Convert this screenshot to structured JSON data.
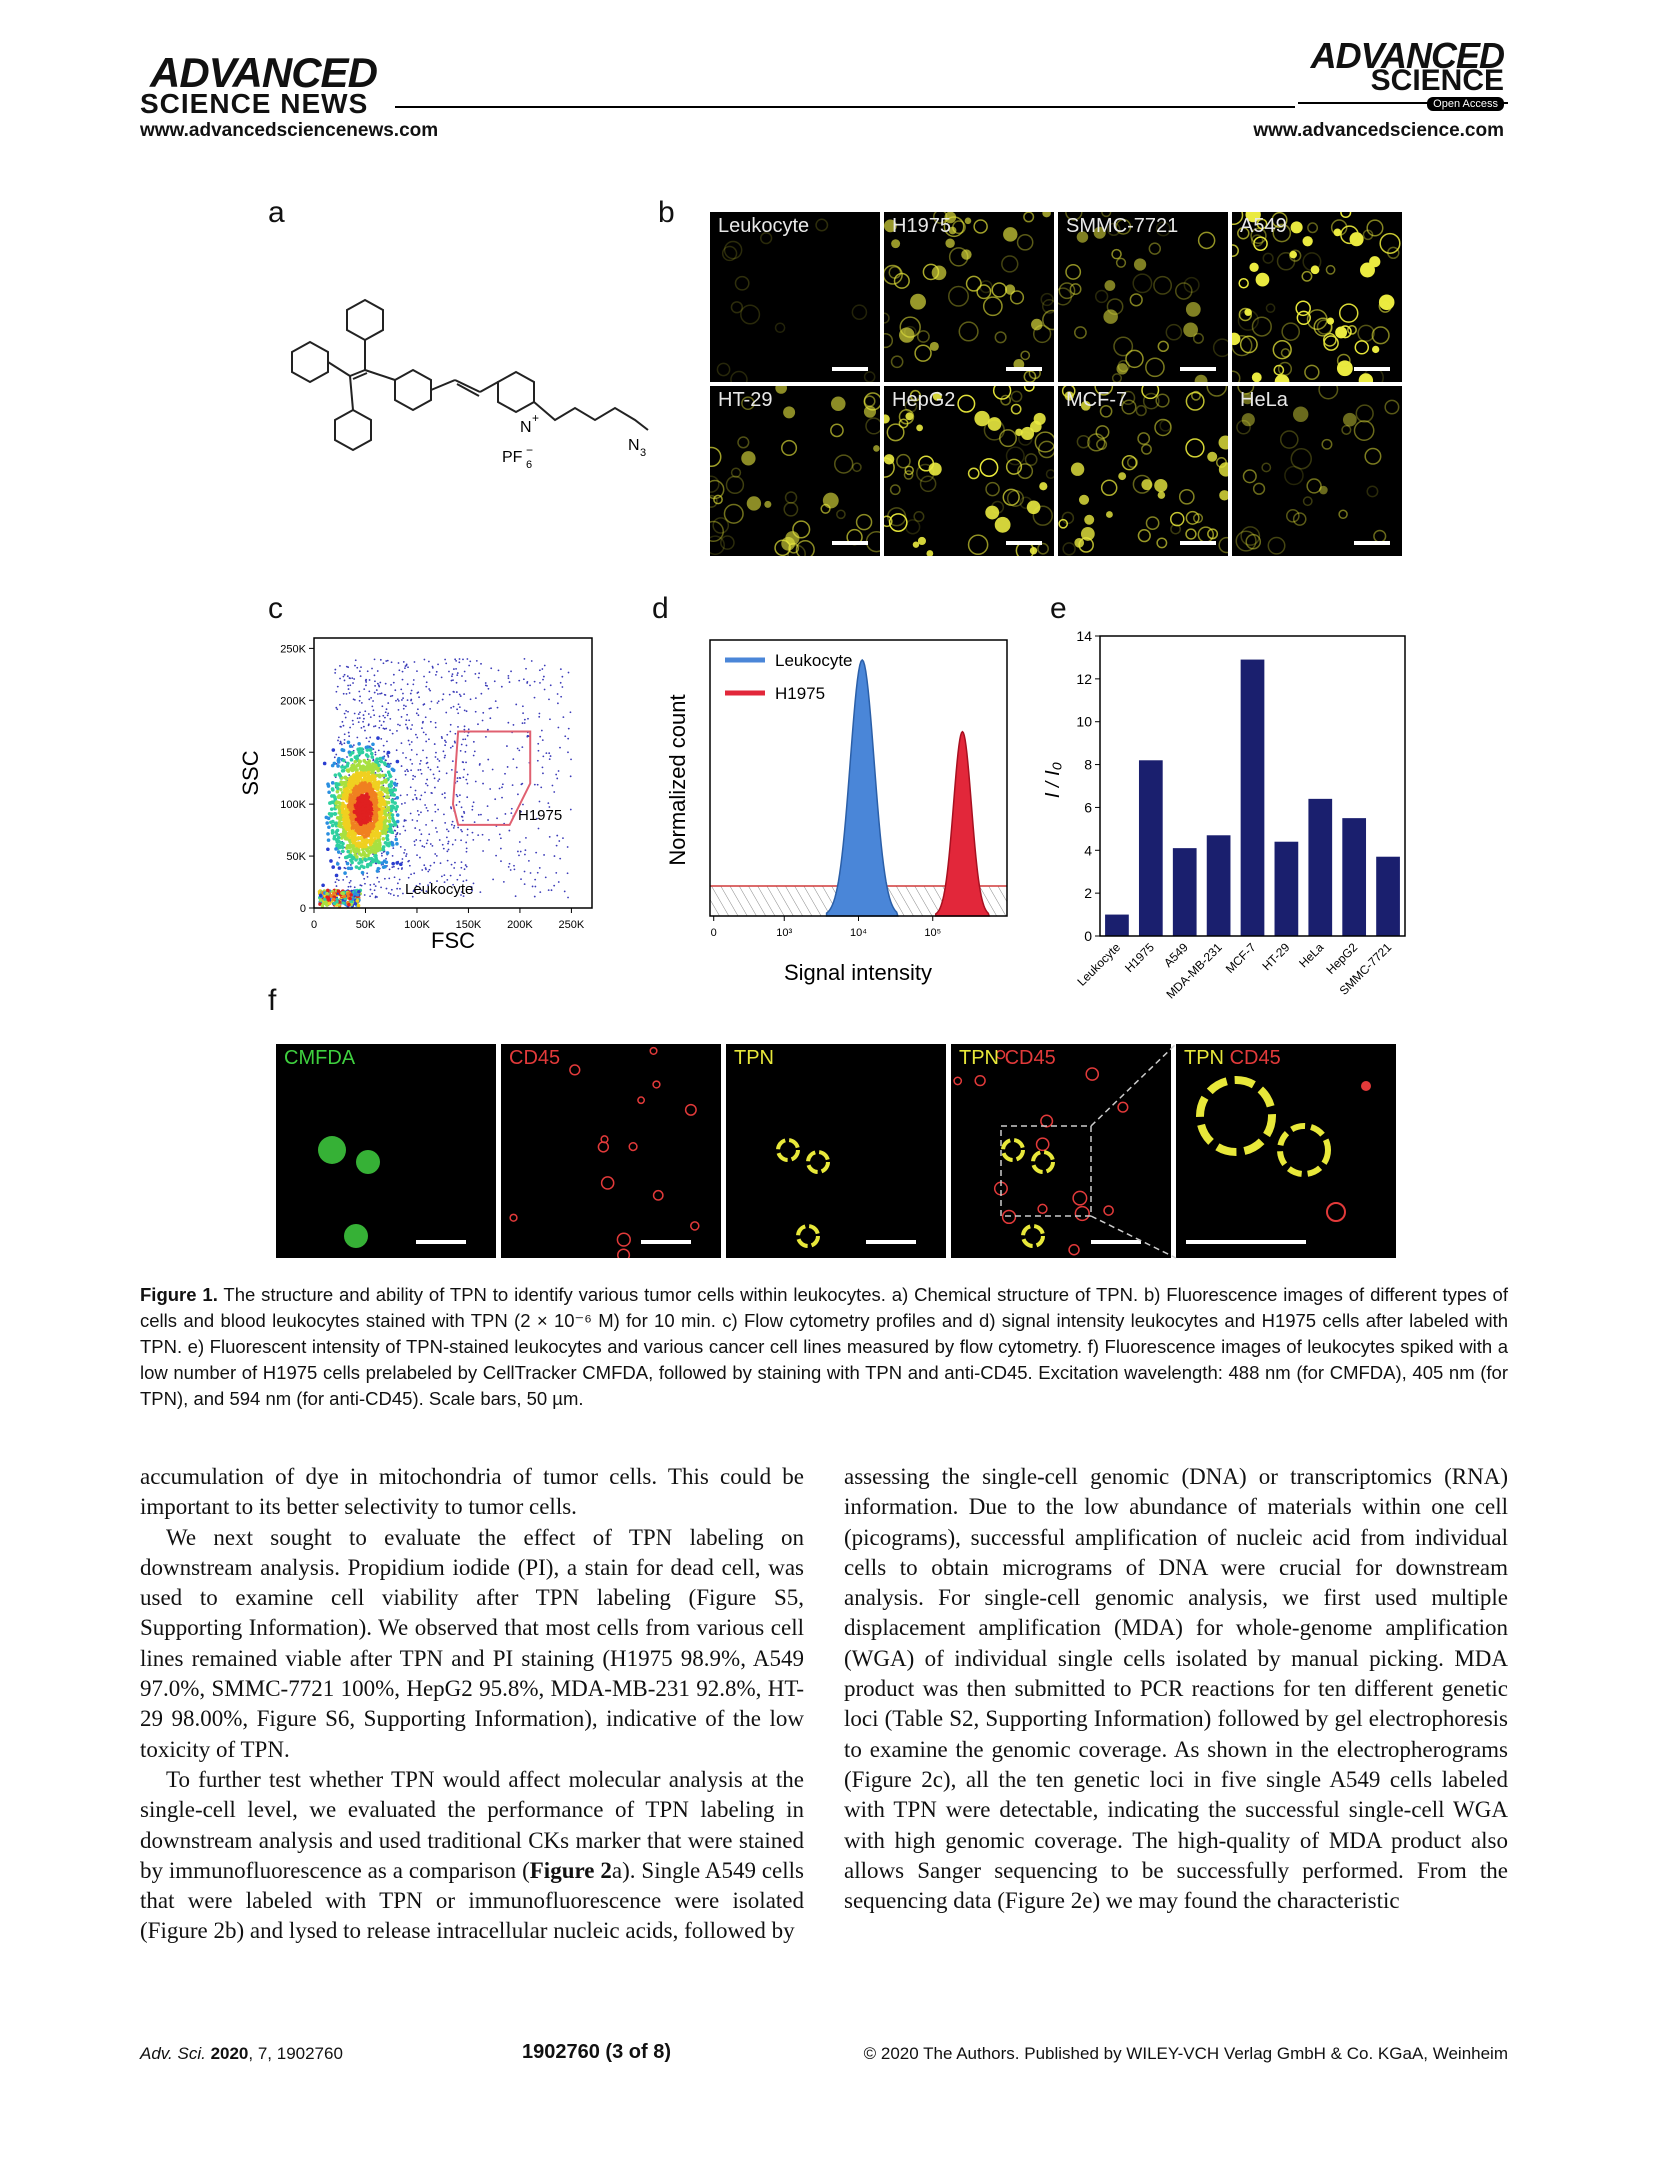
{
  "header": {
    "left_logo_line1": "ADVANCED",
    "left_logo_line2": "SCIENCE NEWS",
    "left_url": "www.advancedsciencenews.com",
    "right_logo_line1": "ADVANCED",
    "right_logo_line2": "SCIENCE",
    "open_access": "Open Access",
    "right_url": "www.advancedscience.com"
  },
  "figure": {
    "panel_letters": [
      "a",
      "b",
      "c",
      "d",
      "e",
      "f"
    ],
    "structure": {
      "n_label": "N",
      "n_charge": "+",
      "counterion": "PF",
      "counterion_sub": "6",
      "counterion_charge": "−",
      "azide": "N",
      "azide_sub": "3"
    },
    "panel_b_tiles": [
      "Leukocyte",
      "H1975",
      "SMMC-7721",
      "A549",
      "HT-29",
      "HepG2",
      "MCF-7",
      "HeLa"
    ],
    "panel_f_labels": [
      {
        "a": "CMFDA",
        "b": ""
      },
      {
        "a": "",
        "b": "CD45"
      },
      {
        "a": "TPN",
        "b": ""
      },
      {
        "a": "TPN",
        "b": "CD45"
      },
      {
        "a": "TPN",
        "b": "CD45"
      }
    ],
    "colors": {
      "cmfda": "#3fd03f",
      "cd45": "#e23a3a",
      "tpn": "#e8e83a",
      "bar": "#1a1f6e",
      "leukocyte": "#4a86d8",
      "h1975": "#e2273a"
    }
  },
  "chart_data": [
    {
      "type": "scatter",
      "panel": "c",
      "xlabel": "FSC",
      "ylabel": "SSC",
      "x_ticks": [
        "0",
        "50K",
        "100K",
        "150K",
        "200K",
        "250K"
      ],
      "y_ticks": [
        "0",
        "50K",
        "100K",
        "150K",
        "200K",
        "250K"
      ],
      "xlim": [
        0,
        270000
      ],
      "ylim": [
        0,
        260000
      ],
      "gates": [
        {
          "name": "H1975",
          "polygon": [
            [
              140000,
              170000
            ],
            [
              210000,
              170000
            ],
            [
              210000,
              120000
            ],
            [
              190000,
              80000
            ],
            [
              140000,
              80000
            ],
            [
              135000,
              100000
            ]
          ]
        },
        {
          "name": "Leukocyte",
          "polygon": []
        }
      ]
    },
    {
      "type": "area",
      "panel": "d",
      "xlabel": "Signal intensity",
      "ylabel": "Normalized count",
      "x_ticks": [
        "0",
        "10³",
        "10⁴",
        "10⁵"
      ],
      "series": [
        {
          "name": "Leukocyte",
          "peak_log10": 4.05,
          "relative_height": 1.0
        },
        {
          "name": "H1975",
          "peak_log10": 5.4,
          "relative_height": 0.72
        }
      ]
    },
    {
      "type": "bar",
      "panel": "e",
      "ylabel": "I / I₀",
      "ylim": [
        0,
        14
      ],
      "y_ticks": [
        "0",
        "2",
        "4",
        "6",
        "8",
        "10",
        "12",
        "14"
      ],
      "categories": [
        "Leukocyte",
        "H1975",
        "A549",
        "MDA-MB-231",
        "MCF-7",
        "HT-29",
        "HeLa",
        "HepG2",
        "SMMC-7721"
      ],
      "values": [
        1.0,
        8.2,
        4.1,
        4.7,
        12.9,
        4.4,
        6.4,
        5.5,
        3.7
      ]
    }
  ],
  "caption": {
    "label": "Figure 1.",
    "text": " The structure and ability of TPN to identify various tumor cells within leukocytes. a) Chemical structure of TPN. b) Fluorescence images of different types of cells and blood leukocytes stained with TPN (2 × 10⁻⁶ M) for 10 min. c) Flow cytometry profiles and d) signal intensity leukocytes and H1975 cells after labeled with TPN. e) Fluorescent intensity of TPN-stained leukocytes and various cancer cell lines measured by flow cytometry. f) Fluorescence images of leukocytes spiked with a low number of H1975 cells prelabeled by CellTracker CMFDA, followed by staining with TPN and anti-CD45. Excitation wavelength: 488 nm (for CMFDA), 405 nm (for TPN), and 594 nm (for anti-CD45). Scale bars, 50 µm."
  },
  "body": {
    "left_p1": "accumulation of dye in mitochondria of tumor cells. This could be important to its better selectivity to tumor cells.",
    "left_p2": "We next sought to evaluate the effect of TPN labeling on downstream analysis. Propidium iodide (PI), a stain for dead cell, was used to examine cell viability after TPN labeling (Figure S5, Supporting Information). We observed that most cells from various cell lines remained viable after TPN and PI staining (H1975 98.9%, A549 97.0%, SMMC-7721 100%, HepG2 95.8%, MDA-MB-231 92.8%, HT-29 98.00%, Figure S6, Supporting Information), indicative of the low toxicity of TPN.",
    "left_p3_a": "To further test whether TPN would affect molecular analysis at the single-cell level, we evaluated the performance of TPN labeling in downstream analysis and used traditional CKs marker that were stained by immunofluorescence as a comparison (",
    "left_p3_bold": "Figure 2",
    "left_p3_b": "a). Single A549 cells that were labeled with TPN or immunofluorescence were isolated (Figure 2b) and lysed to release intracellular nucleic acids, followed by",
    "right_p1": "assessing the single-cell genomic (DNA) or transcriptomics (RNA) information. Due to the low abundance of materials within one cell (picograms), successful amplification of nucleic acid from individual cells to obtain micrograms of DNA were crucial for downstream analysis. For single-cell genomic analysis, we first used multiple displacement amplification (MDA) for whole-genome amplification (WGA) of individual single cells isolated by manual picking. MDA product was then submitted to PCR reactions for ten different genetic loci (Table S2, Supporting Information) followed by gel electrophoresis to examine the genomic coverage. As shown in the electropherograms (Figure 2c), all the ten genetic loci in five single A549 cells labeled with TPN were detectable, indicating the successful single-cell WGA with high genomic coverage. The high-quality of MDA product also allows Sanger sequencing to be successfully performed. From the sequencing data (Figure 2e) we may found the characteristic"
  },
  "footer": {
    "journal": "Adv. Sci.",
    "year": "2020",
    "rest": ", 7, 1902760",
    "page": "1902760  (3 of 8)",
    "copyright": "© 2020 The Authors. Published by WILEY-VCH Verlag GmbH & Co. KGaA, Weinheim"
  }
}
